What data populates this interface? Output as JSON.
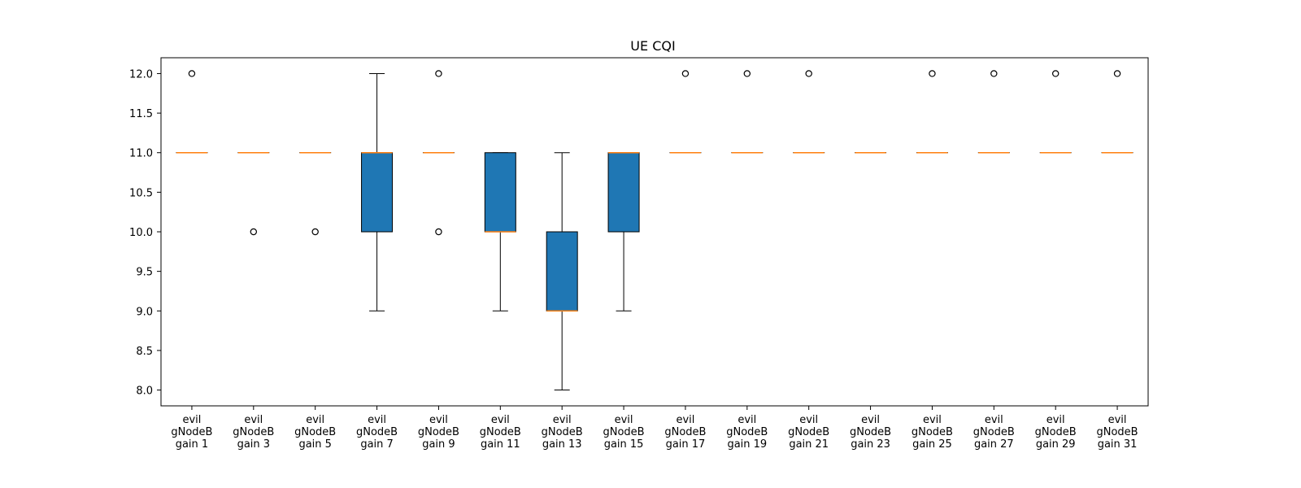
{
  "chart_data": {
    "type": "box",
    "title": "UE CQI",
    "xlabel": "",
    "ylabel": "",
    "ylim": [
      7.8,
      12.2
    ],
    "yticks": [
      "8.0",
      "8.5",
      "9.0",
      "9.5",
      "10.0",
      "10.5",
      "11.0",
      "11.5",
      "12.0"
    ],
    "colors": {
      "box_fill": "#1f77b4",
      "median": "#ff7f0e",
      "line": "#000000",
      "flier_edge": "#000000"
    },
    "categories": [
      [
        "evil",
        "gNodeB",
        "gain 1"
      ],
      [
        "evil",
        "gNodeB",
        "gain 3"
      ],
      [
        "evil",
        "gNodeB",
        "gain 5"
      ],
      [
        "evil",
        "gNodeB",
        "gain 7"
      ],
      [
        "evil",
        "gNodeB",
        "gain 9"
      ],
      [
        "evil",
        "gNodeB",
        "gain 11"
      ],
      [
        "evil",
        "gNodeB",
        "gain 13"
      ],
      [
        "evil",
        "gNodeB",
        "gain 15"
      ],
      [
        "evil",
        "gNodeB",
        "gain 17"
      ],
      [
        "evil",
        "gNodeB",
        "gain 19"
      ],
      [
        "evil",
        "gNodeB",
        "gain 21"
      ],
      [
        "evil",
        "gNodeB",
        "gain 23"
      ],
      [
        "evil",
        "gNodeB",
        "gain 25"
      ],
      [
        "evil",
        "gNodeB",
        "gain 27"
      ],
      [
        "evil",
        "gNodeB",
        "gain 29"
      ],
      [
        "evil",
        "gNodeB",
        "gain 31"
      ]
    ],
    "boxes": [
      {
        "whislo": 11,
        "q1": 11,
        "med": 11,
        "q3": 11,
        "whishi": 11,
        "fliers": [
          12
        ]
      },
      {
        "whislo": 11,
        "q1": 11,
        "med": 11,
        "q3": 11,
        "whishi": 11,
        "fliers": [
          10
        ]
      },
      {
        "whislo": 11,
        "q1": 11,
        "med": 11,
        "q3": 11,
        "whishi": 11,
        "fliers": [
          10
        ]
      },
      {
        "whislo": 9,
        "q1": 10,
        "med": 11,
        "q3": 11,
        "whishi": 12,
        "fliers": []
      },
      {
        "whislo": 11,
        "q1": 11,
        "med": 11,
        "q3": 11,
        "whishi": 11,
        "fliers": [
          12,
          10
        ]
      },
      {
        "whislo": 9,
        "q1": 10,
        "med": 10,
        "q3": 11,
        "whishi": 11,
        "fliers": []
      },
      {
        "whislo": 8,
        "q1": 9,
        "med": 9,
        "q3": 10,
        "whishi": 11,
        "fliers": []
      },
      {
        "whislo": 9,
        "q1": 10,
        "med": 11,
        "q3": 11,
        "whishi": 11,
        "fliers": []
      },
      {
        "whislo": 11,
        "q1": 11,
        "med": 11,
        "q3": 11,
        "whishi": 11,
        "fliers": [
          12
        ]
      },
      {
        "whislo": 11,
        "q1": 11,
        "med": 11,
        "q3": 11,
        "whishi": 11,
        "fliers": [
          12
        ]
      },
      {
        "whislo": 11,
        "q1": 11,
        "med": 11,
        "q3": 11,
        "whishi": 11,
        "fliers": [
          12
        ]
      },
      {
        "whislo": 11,
        "q1": 11,
        "med": 11,
        "q3": 11,
        "whishi": 11,
        "fliers": []
      },
      {
        "whislo": 11,
        "q1": 11,
        "med": 11,
        "q3": 11,
        "whishi": 11,
        "fliers": [
          12
        ]
      },
      {
        "whislo": 11,
        "q1": 11,
        "med": 11,
        "q3": 11,
        "whishi": 11,
        "fliers": [
          12
        ]
      },
      {
        "whislo": 11,
        "q1": 11,
        "med": 11,
        "q3": 11,
        "whishi": 11,
        "fliers": [
          12
        ]
      },
      {
        "whislo": 11,
        "q1": 11,
        "med": 11,
        "q3": 11,
        "whishi": 11,
        "fliers": [
          12
        ]
      }
    ],
    "grid": false,
    "legend": "none"
  }
}
